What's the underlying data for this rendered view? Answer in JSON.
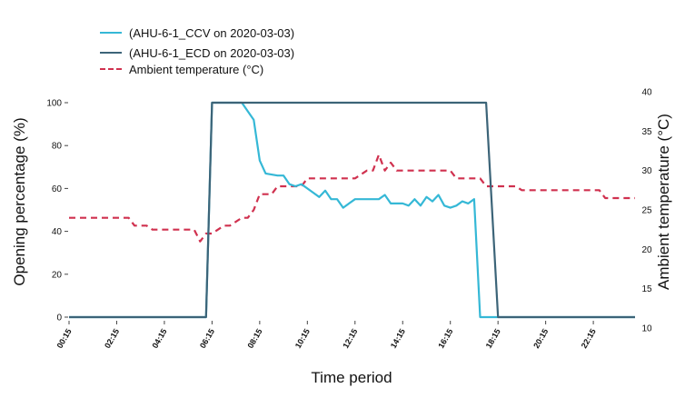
{
  "chart_data": {
    "type": "line",
    "xlabel": "Time period",
    "ylabel_left": "Opening percentage (%)",
    "ylabel_right": "Ambient temperature (°C)",
    "ylim_left": [
      0,
      100
    ],
    "ylim_right": [
      10,
      40
    ],
    "yticks_left": [
      "0",
      "20",
      "40",
      "60",
      "80",
      "100"
    ],
    "yticks_right": [
      "10",
      "15",
      "20",
      "25",
      "30",
      "35",
      "40"
    ],
    "x_tick_labels": [
      "00:15",
      "02:15",
      "04:15",
      "06:15",
      "08:15",
      "10:15",
      "12:15",
      "14:15",
      "16:15",
      "18:15",
      "20:15",
      "22:15"
    ],
    "grid": false,
    "legend_position": "top-left",
    "series": [
      {
        "name": "(AHU-6-1_CCV on 2020-03-03)",
        "color": "#35b8d6",
        "style": "solid",
        "axis": "left",
        "x": [
          "00:15",
          "06:00",
          "06:15",
          "07:00",
          "07:30",
          "08:00",
          "08:15",
          "08:30",
          "09:00",
          "09:15",
          "09:30",
          "09:45",
          "10:00",
          "10:15",
          "10:30",
          "10:45",
          "11:00",
          "11:15",
          "11:30",
          "11:45",
          "12:00",
          "12:15",
          "12:30",
          "12:45",
          "13:00",
          "13:15",
          "13:30",
          "13:45",
          "14:00",
          "14:15",
          "14:30",
          "14:45",
          "15:00",
          "15:15",
          "15:30",
          "15:45",
          "16:00",
          "16:15",
          "16:30",
          "16:45",
          "17:00",
          "17:15",
          "17:30",
          "17:45",
          "18:00",
          "18:15",
          "24:00"
        ],
        "values": [
          0,
          0,
          100,
          100,
          100,
          92,
          73,
          67,
          66,
          66,
          62,
          61,
          62,
          60,
          58,
          56,
          59,
          55,
          55,
          51,
          53,
          55,
          55,
          55,
          55,
          55,
          57,
          53,
          53,
          53,
          52,
          55,
          52,
          56,
          54,
          57,
          52,
          51,
          52,
          54,
          53,
          55,
          0,
          0,
          0,
          0,
          0
        ]
      },
      {
        "name": "(AHU-6-1_ECD on 2020-03-03)",
        "color": "#3c6478",
        "style": "solid",
        "axis": "left",
        "x": [
          "00:15",
          "06:00",
          "06:15",
          "17:45",
          "18:15",
          "24:00"
        ],
        "values": [
          0,
          0,
          100,
          100,
          0,
          0
        ]
      },
      {
        "name": "Ambient temperature (°C)",
        "color": "#d0314f",
        "style": "dashed",
        "axis": "right",
        "x": [
          "00:15",
          "02:45",
          "03:00",
          "03:30",
          "03:45",
          "05:30",
          "05:45",
          "06:00",
          "06:15",
          "06:45",
          "07:00",
          "07:30",
          "07:45",
          "08:00",
          "08:15",
          "08:45",
          "09:00",
          "09:30",
          "10:00",
          "10:15",
          "10:30",
          "12:00",
          "12:15",
          "12:45",
          "13:00",
          "13:15",
          "13:30",
          "13:45",
          "14:00",
          "16:15",
          "16:30",
          "17:30",
          "17:45",
          "18:30",
          "19:00",
          "19:15",
          "22:30",
          "22:45",
          "24:00"
        ],
        "values": [
          24,
          24,
          23,
          23,
          22.5,
          22.5,
          21,
          22,
          22,
          23,
          23,
          24,
          24,
          25,
          27,
          27,
          28,
          28,
          28,
          29,
          29,
          29,
          29,
          30,
          30,
          32,
          30,
          31,
          30,
          30,
          29,
          29,
          28,
          28,
          28,
          27.5,
          27.5,
          26.5,
          26.5
        ]
      }
    ]
  }
}
